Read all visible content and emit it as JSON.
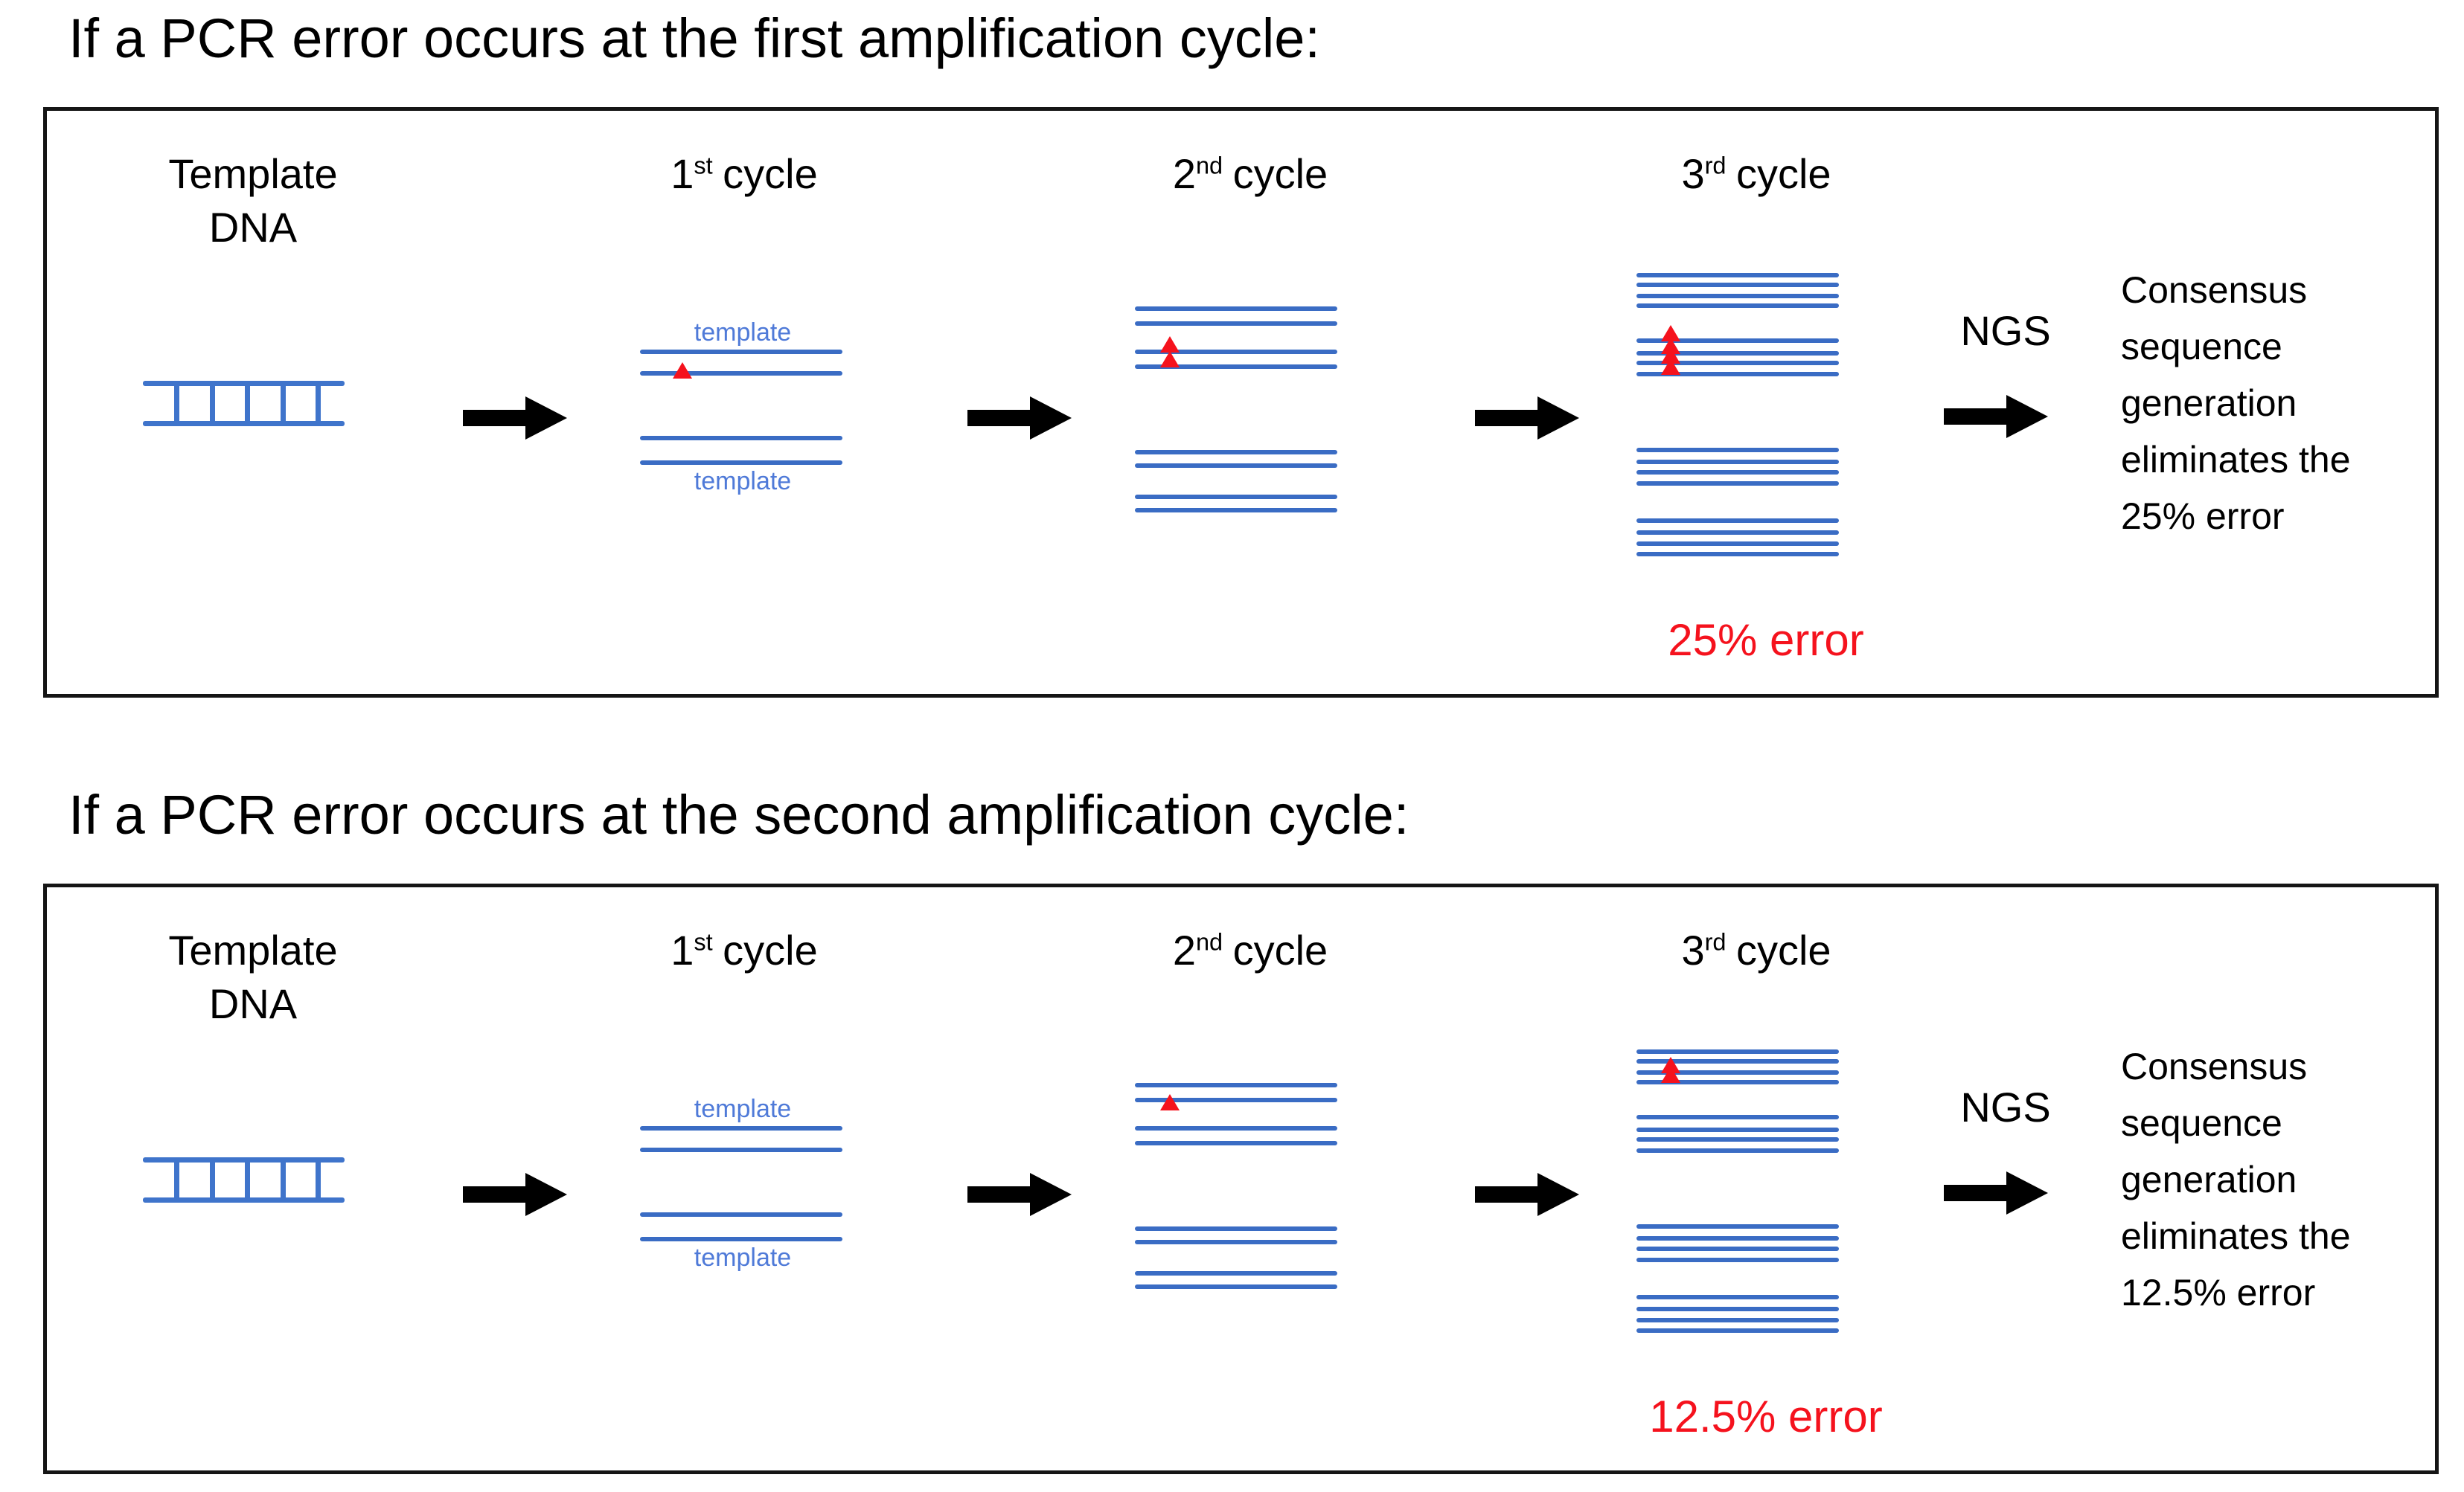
{
  "diagram_colors": {
    "strand_blue": "#3a6cc4",
    "ladder_blue": "#3f74cb",
    "template_label_blue": "#4f7ad8",
    "error_red": "#f5121d",
    "arrow_black": "#000000"
  },
  "sections": [
    {
      "title": "If a PCR error occurs at the first amplification cycle:",
      "headers": {
        "template": "Template\nDNA",
        "cycles": [
          {
            "num": "1",
            "sup": "st",
            "word": "cycle"
          },
          {
            "num": "2",
            "sup": "nd",
            "word": "cycle"
          },
          {
            "num": "3",
            "sup": "rd",
            "word": "cycle"
          }
        ]
      },
      "cycle1_labels": {
        "top": "template",
        "bottom": "template"
      },
      "ngs_label": "NGS",
      "consensus_text": "Consensus\nsequence\ngeneration\neliminates the\n25% error",
      "error_label": "25% error",
      "figure": {
        "template_dna": "double-stranded ladder",
        "cycle1_errors": [
          {
            "line": 1,
            "pos": "on"
          }
        ],
        "cycle2_errors": [
          {
            "line": 2,
            "pos": "above"
          },
          {
            "line": 3,
            "pos": "above"
          }
        ],
        "cycle3_errors": [
          {
            "line": 4,
            "pos": "above"
          },
          {
            "line": 5,
            "pos": "above"
          },
          {
            "line": 6,
            "pos": "above"
          },
          {
            "line": 7,
            "pos": "above"
          }
        ]
      }
    },
    {
      "title": "If a PCR error occurs at the second amplification cycle:",
      "headers": {
        "template": "Template\nDNA",
        "cycles": [
          {
            "num": "1",
            "sup": "st",
            "word": "cycle"
          },
          {
            "num": "2",
            "sup": "nd",
            "word": "cycle"
          },
          {
            "num": "3",
            "sup": "rd",
            "word": "cycle"
          }
        ]
      },
      "cycle1_labels": {
        "top": "template",
        "bottom": "template"
      },
      "ngs_label": "NGS",
      "consensus_text": "Consensus\nsequence\ngeneration\neliminates the\n12.5% error",
      "error_label": "12.5% error",
      "figure": {
        "template_dna": "double-stranded ladder",
        "cycle1_errors": [],
        "cycle2_errors": [
          {
            "line": 1,
            "pos": "below"
          }
        ],
        "cycle3_errors": [
          {
            "line": 2,
            "pos": "above"
          },
          {
            "line": 3,
            "pos": "above"
          }
        ]
      }
    }
  ]
}
